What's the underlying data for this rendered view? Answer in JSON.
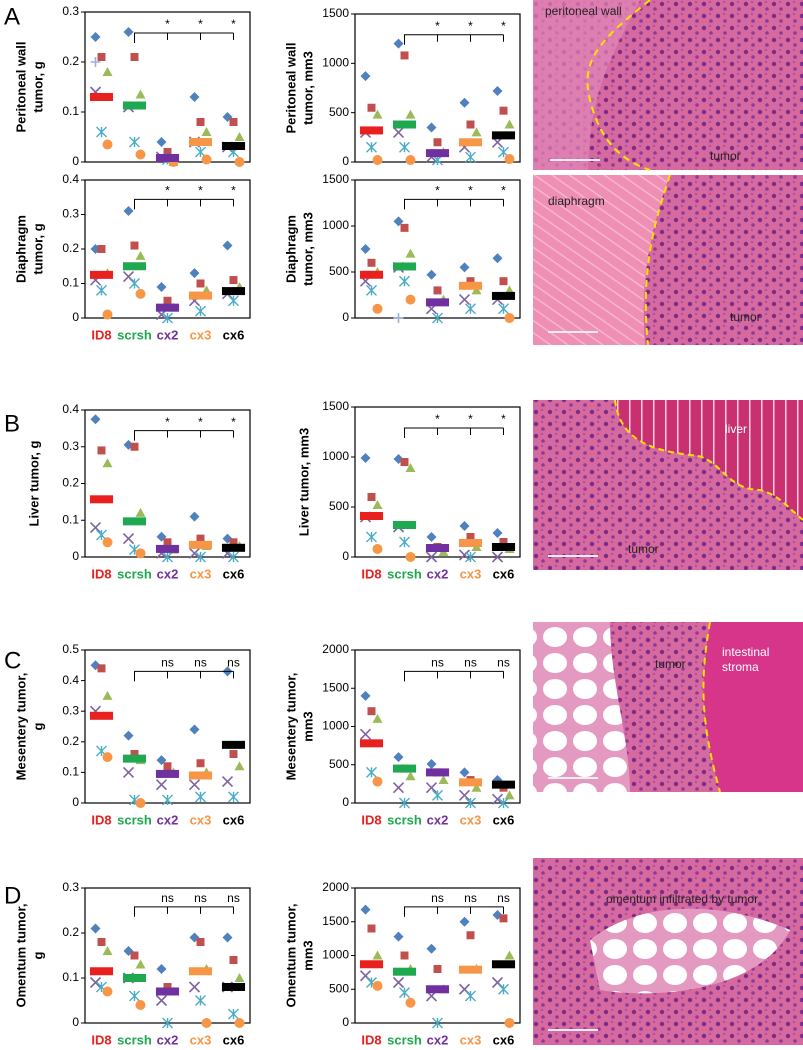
{
  "panels": [
    "A",
    "B",
    "C",
    "D"
  ],
  "markers": [
    {
      "shape": "diamond",
      "color": "#4f81bd"
    },
    {
      "shape": "square",
      "color": "#c0504d"
    },
    {
      "shape": "triangle",
      "color": "#9bbb59"
    },
    {
      "shape": "x",
      "color": "#8064a2"
    },
    {
      "shape": "star",
      "color": "#4bacc6"
    },
    {
      "shape": "circle",
      "color": "#f79646"
    },
    {
      "shape": "plus",
      "color": "#95b3d7"
    },
    {
      "shape": "dash",
      "color": "#d99694"
    }
  ],
  "chart_data": [
    {
      "type": "dotplot",
      "y_label": [
        "Peritoneal wall",
        "tumor, g"
      ],
      "colors": [
        "#e8201e",
        "#1fa84f",
        "#7030a0",
        "#f79646",
        "#000000"
      ],
      "values": [
        0.13,
        0.113,
        0.008,
        0.04,
        0.032
      ],
      "points": [
        [
          0.25,
          0.21,
          0.18,
          0.14,
          0.06,
          0.035,
          0.2
        ],
        [
          0.26,
          0.21,
          0.135,
          0.11,
          0.04,
          0.015
        ],
        [
          0.04,
          0.02,
          0,
          0.01,
          0.005,
          0
        ],
        [
          0.13,
          0.08,
          0.06,
          0.04,
          0.02,
          0.005
        ],
        [
          0.09,
          0.08,
          0.05,
          0.03,
          0.02,
          0
        ]
      ],
      "ylim": [
        0,
        0.3
      ],
      "yticks": [
        0,
        0.1,
        0.2,
        0.3
      ],
      "significance": [
        "*",
        "*",
        "*"
      ]
    },
    {
      "type": "dotplot",
      "y_label": [
        "Peritoneal wall",
        "tumor, mm3"
      ],
      "colors": [
        "#e8201e",
        "#1fa84f",
        "#7030a0",
        "#f79646",
        "#000000"
      ],
      "values": [
        320,
        380,
        90,
        200,
        270
      ],
      "points": [
        [
          870,
          550,
          480,
          300,
          150,
          20
        ],
        [
          1200,
          1080,
          480,
          300,
          150,
          20
        ],
        [
          350,
          200,
          100,
          50,
          20
        ],
        [
          600,
          380,
          300,
          150,
          50
        ],
        [
          720,
          520,
          380,
          200,
          100,
          30
        ]
      ],
      "ylim": [
        0,
        1500
      ],
      "yticks": [
        0,
        500,
        1000,
        1500
      ],
      "significance": [
        "*",
        "*",
        "*"
      ]
    },
    {
      "type": "dotplot",
      "y_label": [
        "Diaphragm",
        "tumor, g"
      ],
      "categories": [
        "ID8",
        "scrsh",
        "cx2",
        "cx3",
        "cx6"
      ],
      "colors": [
        "#e8201e",
        "#1fa84f",
        "#7030a0",
        "#f79646",
        "#000000"
      ],
      "values": [
        0.125,
        0.15,
        0.03,
        0.065,
        0.078
      ],
      "points": [
        [
          0.2,
          0.2,
          0.13,
          0.11,
          0.08,
          0.01
        ],
        [
          0.31,
          0.21,
          0.18,
          0.12,
          0.1,
          0.07
        ],
        [
          0.09,
          0.05,
          0.03,
          0.01,
          0
        ],
        [
          0.13,
          0.1,
          0.08,
          0.05,
          0.02
        ],
        [
          0.21,
          0.11,
          0.09,
          0.07,
          0.05
        ]
      ],
      "ylim": [
        0,
        0.4
      ],
      "yticks": [
        0,
        0.1,
        0.2,
        0.3,
        0.4
      ],
      "significance": [
        "*",
        "*",
        "*"
      ]
    },
    {
      "type": "dotplot",
      "y_label": [
        "Diaphragm",
        "tumor, mm3"
      ],
      "colors": [
        "#e8201e",
        "#1fa84f",
        "#7030a0",
        "#f79646",
        "#000000"
      ],
      "values": [
        470,
        560,
        170,
        350,
        240
      ],
      "points": [
        [
          750,
          600,
          500,
          400,
          300,
          100
        ],
        [
          1050,
          980,
          700,
          550,
          400,
          200,
          0
        ],
        [
          470,
          300,
          200,
          100,
          0
        ],
        [
          550,
          400,
          300,
          200,
          100
        ],
        [
          650,
          400,
          300,
          200,
          100,
          0
        ]
      ],
      "ylim": [
        0,
        1500
      ],
      "yticks": [
        0,
        500,
        1000,
        1500
      ],
      "significance": [
        "*",
        "*",
        "*"
      ]
    },
    {
      "type": "dotplot",
      "y_label": [
        "Liver tumor, g"
      ],
      "categories": [
        "ID8",
        "scrsh",
        "cx2",
        "cx3",
        "cx6"
      ],
      "colors": [
        "#e8201e",
        "#1fa84f",
        "#7030a0",
        "#f79646",
        "#000000"
      ],
      "values": [
        0.157,
        0.097,
        0.022,
        0.033,
        0.025
      ],
      "points": [
        [
          0.375,
          0.29,
          0.255,
          0.08,
          0.06,
          0.04
        ],
        [
          0.305,
          0.3,
          0.12,
          0.05,
          0.02,
          0.01
        ],
        [
          0.055,
          0.04,
          0.02,
          0.01,
          0
        ],
        [
          0.11,
          0.05,
          0.03,
          0.01,
          0
        ],
        [
          0.05,
          0.04,
          0.03,
          0.01,
          0
        ]
      ],
      "ylim": [
        0,
        0.4
      ],
      "yticks": [
        0,
        0.1,
        0.2,
        0.3,
        0.4
      ],
      "significance": [
        "*",
        "*",
        "*"
      ]
    },
    {
      "type": "dotplot",
      "y_label": [
        "Liver tumor, mm3"
      ],
      "categories": [
        "ID8",
        "scrsh",
        "cx2",
        "cx3",
        "cx6"
      ],
      "colors": [
        "#e8201e",
        "#1fa84f",
        "#7030a0",
        "#f79646",
        "#000000"
      ],
      "values": [
        410,
        320,
        90,
        140,
        100
      ],
      "points": [
        [
          990,
          600,
          520,
          400,
          200,
          80
        ],
        [
          980,
          950,
          890,
          300,
          150,
          0
        ],
        [
          200,
          100,
          50,
          0
        ],
        [
          310,
          200,
          100,
          20,
          0
        ],
        [
          240,
          150,
          80,
          0
        ]
      ],
      "ylim": [
        0,
        1500
      ],
      "yticks": [
        0,
        500,
        1000,
        1500
      ],
      "significance": [
        "*",
        "*",
        "*"
      ]
    },
    {
      "type": "dotplot",
      "y_label": [
        "Mesentery tumor,",
        "g"
      ],
      "categories": [
        "ID8",
        "scrsh",
        "cx2",
        "cx3",
        "cx6"
      ],
      "colors": [
        "#e8201e",
        "#1fa84f",
        "#7030a0",
        "#f79646",
        "#000000"
      ],
      "values": [
        0.285,
        0.145,
        0.095,
        0.09,
        0.19
      ],
      "points": [
        [
          0.45,
          0.44,
          0.35,
          0.3,
          0.17,
          0.15
        ],
        [
          0.22,
          0.16,
          0.14,
          0.1,
          0.01,
          0
        ],
        [
          0.14,
          0.12,
          0.1,
          0.06,
          0.01
        ],
        [
          0.24,
          0.13,
          0.1,
          0.06,
          0.02
        ],
        [
          0.43,
          0.16,
          0.12,
          0.07,
          0.02
        ]
      ],
      "ylim": [
        0,
        0.5
      ],
      "yticks": [
        0,
        0.1,
        0.2,
        0.3,
        0.4,
        0.5
      ],
      "significance": [
        "ns",
        "ns",
        "ns"
      ]
    },
    {
      "type": "dotplot",
      "y_label": [
        "Mesentery tumor,",
        "mm3"
      ],
      "categories": [
        "ID8",
        "scrsh",
        "cx2",
        "cx3",
        "cx6"
      ],
      "colors": [
        "#e8201e",
        "#1fa84f",
        "#7030a0",
        "#f79646",
        "#000000"
      ],
      "values": [
        780,
        450,
        400,
        270,
        240
      ],
      "points": [
        [
          1400,
          1200,
          1100,
          900,
          400,
          280
        ],
        [
          600,
          450,
          350,
          200,
          0
        ],
        [
          510,
          400,
          300,
          200,
          100
        ],
        [
          400,
          300,
          200,
          100,
          0
        ],
        [
          300,
          200,
          100,
          50,
          0
        ]
      ],
      "ylim": [
        0,
        2000
      ],
      "yticks": [
        0,
        500,
        1000,
        1500,
        2000
      ],
      "significance": [
        "ns",
        "ns",
        "ns"
      ]
    },
    {
      "type": "dotplot",
      "y_label": [
        "Omentum tumor,",
        "g"
      ],
      "categories": [
        "ID8",
        "scrsh",
        "cx2",
        "cx3",
        "cx6"
      ],
      "colors": [
        "#e8201e",
        "#1fa84f",
        "#7030a0",
        "#f79646",
        "#000000"
      ],
      "values": [
        0.115,
        0.1,
        0.07,
        0.115,
        0.08
      ],
      "points": [
        [
          0.21,
          0.18,
          0.16,
          0.09,
          0.08,
          0.07
        ],
        [
          0.16,
          0.15,
          0.13,
          0.1,
          0.06,
          0.04
        ],
        [
          0.12,
          0.08,
          0.07,
          0.05,
          0
        ],
        [
          0.19,
          0.18,
          0.12,
          0.08,
          0.05,
          0
        ],
        [
          0.19,
          0.14,
          0.1,
          0.08,
          0.02,
          0
        ]
      ],
      "ylim": [
        0,
        0.3
      ],
      "yticks": [
        0,
        0.1,
        0.2,
        0.3
      ],
      "significance": [
        "ns",
        "ns",
        "ns"
      ]
    },
    {
      "type": "dotplot",
      "y_label": [
        "Omentum tumor,",
        "mm3"
      ],
      "categories": [
        "ID8",
        "scrsh",
        "cx2",
        "cx3",
        "cx6"
      ],
      "colors": [
        "#e8201e",
        "#1fa84f",
        "#7030a0",
        "#f79646",
        "#000000"
      ],
      "values": [
        870,
        760,
        500,
        790,
        870
      ],
      "points": [
        [
          1680,
          1400,
          1000,
          700,
          600,
          550
        ],
        [
          1280,
          1000,
          800,
          600,
          450,
          300
        ],
        [
          1100,
          800,
          500,
          400,
          0
        ],
        [
          1500,
          1300,
          800,
          500,
          400
        ],
        [
          1600,
          1550,
          1000,
          600,
          500,
          0
        ]
      ],
      "ylim": [
        0,
        2000
      ],
      "yticks": [
        0,
        500,
        1000,
        1500,
        2000
      ],
      "significance": [
        "ns",
        "ns",
        "ns"
      ]
    }
  ],
  "images": [
    {
      "labels": [
        "peritoneal wall",
        "tumor"
      ]
    },
    {
      "labels": [
        "diaphragm",
        "tumor"
      ]
    },
    {
      "labels": [
        "liver",
        "tumor"
      ]
    },
    {
      "labels": [
        "tumor",
        "intestinal",
        "stroma"
      ]
    },
    {
      "labels": [
        "omentum infiltrated by tumor"
      ]
    }
  ]
}
